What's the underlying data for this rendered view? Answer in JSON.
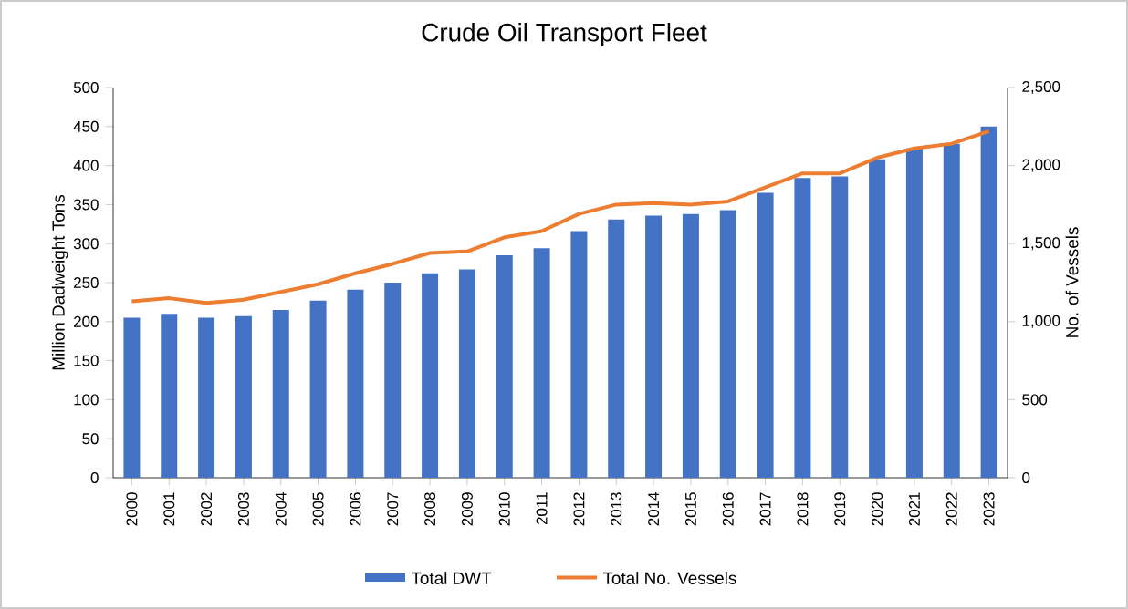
{
  "chart_data": {
    "type": "bar",
    "title": "Crude Oil Transport Fleet",
    "ylabel": "Million Dadweight  Tons",
    "y2label": "No. of Vessels",
    "categories": [
      "2000",
      "2001",
      "2002",
      "2003",
      "2004",
      "2005",
      "2006",
      "2007",
      "2008",
      "2009",
      "2010",
      "2011",
      "2012",
      "2013",
      "2014",
      "2015",
      "2016",
      "2017",
      "2018",
      "2019",
      "2020",
      "2021",
      "2022",
      "2023"
    ],
    "series": [
      {
        "name": "Total DWT",
        "color": "#4472c4",
        "values": [
          205,
          210,
          205,
          207,
          215,
          227,
          241,
          250,
          262,
          267,
          285,
          294,
          316,
          331,
          336,
          338,
          343,
          365,
          384,
          386,
          408,
          422,
          428,
          450
        ]
      },
      {
        "name": "Total No. Vessels",
        "type": "line",
        "axis": "y2",
        "color": "#ed7d31",
        "values": [
          1130,
          1150,
          1120,
          1140,
          1190,
          1240,
          1310,
          1370,
          1440,
          1450,
          1540,
          1580,
          1690,
          1750,
          1760,
          1750,
          1770,
          1860,
          1950,
          1950,
          2050,
          2110,
          2140,
          2220
        ]
      }
    ],
    "ylim": [
      0,
      500
    ],
    "yticks": [
      0,
      50,
      100,
      150,
      200,
      250,
      300,
      350,
      400,
      450,
      500
    ],
    "y2lim": [
      0,
      2500
    ],
    "y2ticks": [
      0,
      {
        "value": 500,
        "label": "500"
      },
      {
        "value": 1000,
        "label": "1,000"
      },
      {
        "value": 1500,
        "label": "1,500"
      },
      {
        "value": 2000,
        "label": "2,000"
      },
      {
        "value": 2500,
        "label": "2,500"
      }
    ],
    "grid": false,
    "legend": "bottom",
    "marker": "none"
  }
}
